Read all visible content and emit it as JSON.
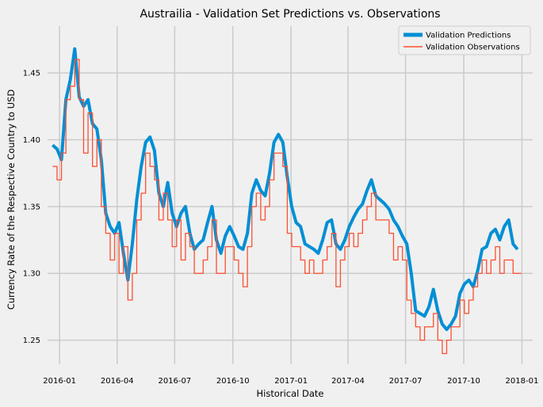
{
  "chart_data": {
    "type": "line",
    "title": "Austrailia - Validation Set Predictions vs. Observations",
    "xlabel": "Historical Date",
    "ylabel": "Currency Rate of the Respective Country to USD",
    "xlim": [
      "2015-12-13",
      "2018-01-18"
    ],
    "ylim": [
      1.232,
      1.485
    ],
    "x_ticks": [
      {
        "date": "2016-01-01",
        "label": "2016-01"
      },
      {
        "date": "2016-04-01",
        "label": "2016-04"
      },
      {
        "date": "2016-07-01",
        "label": "2016-07"
      },
      {
        "date": "2016-10-01",
        "label": "2016-10"
      },
      {
        "date": "2017-01-01",
        "label": "2017-01"
      },
      {
        "date": "2017-04-01",
        "label": "2017-04"
      },
      {
        "date": "2017-07-01",
        "label": "2017-07"
      },
      {
        "date": "2017-10-01",
        "label": "2017-10"
      },
      {
        "date": "2018-01-01",
        "label": "2018-01"
      }
    ],
    "y_ticks": [
      1.25,
      1.3,
      1.35,
      1.4,
      1.45
    ],
    "y_tick_labels": [
      "1.25",
      "1.30",
      "1.35",
      "1.40",
      "1.45"
    ],
    "grid": true,
    "legend_position": "top-right",
    "series": [
      {
        "name": "Validation Predictions",
        "color": "#008fd5",
        "x": [
          "2015-12-21",
          "2015-12-28",
          "2016-01-04",
          "2016-01-11",
          "2016-01-18",
          "2016-01-25",
          "2016-02-01",
          "2016-02-08",
          "2016-02-15",
          "2016-02-22",
          "2016-02-29",
          "2016-03-07",
          "2016-03-14",
          "2016-03-21",
          "2016-03-28",
          "2016-04-04",
          "2016-04-11",
          "2016-04-18",
          "2016-04-25",
          "2016-05-02",
          "2016-05-09",
          "2016-05-16",
          "2016-05-23",
          "2016-05-30",
          "2016-06-06",
          "2016-06-13",
          "2016-06-20",
          "2016-06-27",
          "2016-07-04",
          "2016-07-11",
          "2016-07-18",
          "2016-07-25",
          "2016-08-01",
          "2016-08-08",
          "2016-08-15",
          "2016-08-22",
          "2016-08-29",
          "2016-09-05",
          "2016-09-12",
          "2016-09-19",
          "2016-09-26",
          "2016-10-03",
          "2016-10-10",
          "2016-10-17",
          "2016-10-24",
          "2016-10-31",
          "2016-11-07",
          "2016-11-14",
          "2016-11-21",
          "2016-11-28",
          "2016-12-05",
          "2016-12-12",
          "2016-12-19",
          "2016-12-26",
          "2017-01-02",
          "2017-01-09",
          "2017-01-16",
          "2017-01-23",
          "2017-01-30",
          "2017-02-06",
          "2017-02-13",
          "2017-02-20",
          "2017-02-27",
          "2017-03-06",
          "2017-03-13",
          "2017-03-20",
          "2017-03-27",
          "2017-04-03",
          "2017-04-10",
          "2017-04-17",
          "2017-04-24",
          "2017-05-01",
          "2017-05-08",
          "2017-05-15",
          "2017-05-22",
          "2017-05-29",
          "2017-06-05",
          "2017-06-12",
          "2017-06-19",
          "2017-06-26",
          "2017-07-03",
          "2017-07-10",
          "2017-07-17",
          "2017-07-24",
          "2017-07-31",
          "2017-08-07",
          "2017-08-14",
          "2017-08-21",
          "2017-08-28",
          "2017-09-04",
          "2017-09-11",
          "2017-09-18",
          "2017-09-25",
          "2017-10-02",
          "2017-10-09",
          "2017-10-16",
          "2017-10-23",
          "2017-10-30",
          "2017-11-06",
          "2017-11-13",
          "2017-11-20",
          "2017-11-27",
          "2017-12-04",
          "2017-12-11",
          "2017-12-18",
          "2017-12-25"
        ],
        "values": [
          1.396,
          1.393,
          1.385,
          1.43,
          1.445,
          1.468,
          1.432,
          1.425,
          1.43,
          1.412,
          1.408,
          1.385,
          1.345,
          1.335,
          1.33,
          1.338,
          1.315,
          1.295,
          1.322,
          1.355,
          1.38,
          1.398,
          1.402,
          1.392,
          1.36,
          1.35,
          1.368,
          1.345,
          1.335,
          1.345,
          1.35,
          1.33,
          1.318,
          1.322,
          1.325,
          1.338,
          1.35,
          1.325,
          1.315,
          1.328,
          1.335,
          1.328,
          1.32,
          1.318,
          1.33,
          1.36,
          1.37,
          1.362,
          1.358,
          1.375,
          1.398,
          1.404,
          1.398,
          1.372,
          1.35,
          1.338,
          1.335,
          1.322,
          1.32,
          1.318,
          1.315,
          1.325,
          1.338,
          1.34,
          1.322,
          1.318,
          1.325,
          1.335,
          1.342,
          1.348,
          1.352,
          1.362,
          1.37,
          1.358,
          1.355,
          1.352,
          1.348,
          1.34,
          1.335,
          1.328,
          1.322,
          1.3,
          1.272,
          1.27,
          1.268,
          1.275,
          1.288,
          1.272,
          1.262,
          1.258,
          1.262,
          1.268,
          1.285,
          1.292,
          1.295,
          1.29,
          1.302,
          1.318,
          1.32,
          1.33,
          1.333,
          1.325,
          1.335,
          1.34,
          1.322,
          1.318
        ]
      },
      {
        "name": "Validation Observations",
        "color": "#fc4f30",
        "x": [
          "2015-12-21",
          "2015-12-28",
          "2016-01-04",
          "2016-01-11",
          "2016-01-18",
          "2016-01-25",
          "2016-02-01",
          "2016-02-08",
          "2016-02-15",
          "2016-02-22",
          "2016-02-29",
          "2016-03-07",
          "2016-03-14",
          "2016-03-21",
          "2016-03-28",
          "2016-04-04",
          "2016-04-11",
          "2016-04-18",
          "2016-04-25",
          "2016-05-02",
          "2016-05-09",
          "2016-05-16",
          "2016-05-23",
          "2016-05-30",
          "2016-06-06",
          "2016-06-13",
          "2016-06-20",
          "2016-06-27",
          "2016-07-04",
          "2016-07-11",
          "2016-07-18",
          "2016-07-25",
          "2016-08-01",
          "2016-08-08",
          "2016-08-15",
          "2016-08-22",
          "2016-08-29",
          "2016-09-05",
          "2016-09-12",
          "2016-09-19",
          "2016-09-26",
          "2016-10-03",
          "2016-10-10",
          "2016-10-17",
          "2016-10-24",
          "2016-10-31",
          "2016-11-07",
          "2016-11-14",
          "2016-11-21",
          "2016-11-28",
          "2016-12-05",
          "2016-12-12",
          "2016-12-19",
          "2016-12-26",
          "2017-01-02",
          "2017-01-09",
          "2017-01-16",
          "2017-01-23",
          "2017-01-30",
          "2017-02-06",
          "2017-02-13",
          "2017-02-20",
          "2017-02-27",
          "2017-03-06",
          "2017-03-13",
          "2017-03-20",
          "2017-03-27",
          "2017-04-03",
          "2017-04-10",
          "2017-04-17",
          "2017-04-24",
          "2017-05-01",
          "2017-05-08",
          "2017-05-15",
          "2017-05-22",
          "2017-05-29",
          "2017-06-05",
          "2017-06-12",
          "2017-06-19",
          "2017-06-26",
          "2017-07-03",
          "2017-07-10",
          "2017-07-17",
          "2017-07-24",
          "2017-07-31",
          "2017-08-07",
          "2017-08-14",
          "2017-08-21",
          "2017-08-28",
          "2017-09-04",
          "2017-09-11",
          "2017-09-18",
          "2017-09-25",
          "2017-10-02",
          "2017-10-09",
          "2017-10-16",
          "2017-10-23",
          "2017-10-30",
          "2017-11-06",
          "2017-11-13",
          "2017-11-20",
          "2017-11-27",
          "2017-12-04",
          "2017-12-11",
          "2017-12-18",
          "2017-12-25"
        ],
        "values": [
          1.38,
          1.37,
          1.39,
          1.43,
          1.44,
          1.46,
          1.43,
          1.39,
          1.42,
          1.38,
          1.4,
          1.35,
          1.33,
          1.31,
          1.33,
          1.3,
          1.32,
          1.28,
          1.3,
          1.34,
          1.36,
          1.39,
          1.38,
          1.37,
          1.34,
          1.36,
          1.34,
          1.32,
          1.34,
          1.31,
          1.33,
          1.32,
          1.3,
          1.3,
          1.31,
          1.32,
          1.34,
          1.3,
          1.3,
          1.32,
          1.32,
          1.31,
          1.3,
          1.29,
          1.32,
          1.35,
          1.36,
          1.34,
          1.35,
          1.37,
          1.39,
          1.39,
          1.38,
          1.33,
          1.32,
          1.32,
          1.31,
          1.3,
          1.31,
          1.3,
          1.3,
          1.31,
          1.32,
          1.33,
          1.29,
          1.31,
          1.32,
          1.33,
          1.32,
          1.33,
          1.34,
          1.35,
          1.36,
          1.34,
          1.34,
          1.34,
          1.33,
          1.31,
          1.32,
          1.31,
          1.28,
          1.27,
          1.26,
          1.25,
          1.26,
          1.26,
          1.27,
          1.25,
          1.24,
          1.25,
          1.26,
          1.26,
          1.28,
          1.27,
          1.28,
          1.29,
          1.3,
          1.31,
          1.3,
          1.31,
          1.32,
          1.3,
          1.31,
          1.31,
          1.3,
          1.3
        ]
      }
    ]
  }
}
